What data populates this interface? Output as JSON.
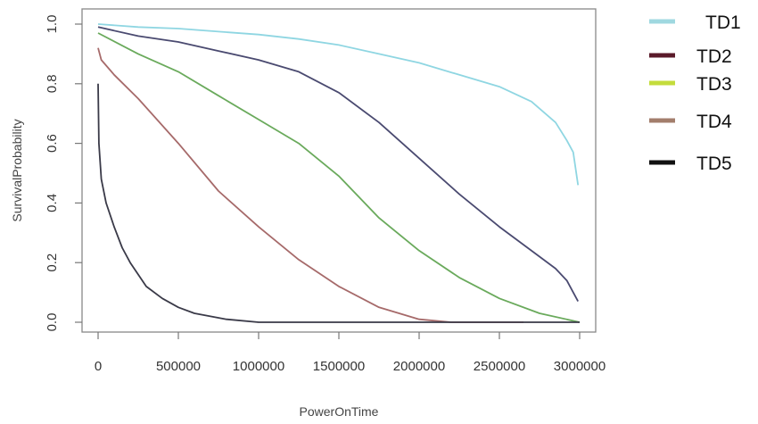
{
  "chart_data": {
    "type": "line",
    "xlabel": "PowerOnTime",
    "ylabel": "SurvivalProbability",
    "xlim": [
      0,
      3000000
    ],
    "ylim": [
      0,
      1
    ],
    "xticks": [
      0,
      500000,
      1000000,
      1500000,
      2000000,
      2500000,
      3000000
    ],
    "xtick_labels": [
      "0",
      "500000",
      "1000000",
      "1500000",
      "2000000",
      "2500000",
      "3000000"
    ],
    "yticks": [
      0,
      0.2,
      0.4,
      0.6,
      0.8,
      1.0
    ],
    "ytick_labels": [
      "0.0",
      "0.2",
      "0.4",
      "0.6",
      "0.8",
      "1.0"
    ],
    "grid": false,
    "legend_position": "right",
    "legend": [
      {
        "label": "TD1",
        "color": "#9fd8e0"
      },
      {
        "label": "TD2",
        "color": "#5a1a2a"
      },
      {
        "label": "TD3",
        "color": "#c4dc3c"
      },
      {
        "label": "TD4",
        "color": "#a37e6c"
      },
      {
        "label": "TD5",
        "color": "#111111"
      }
    ],
    "series": [
      {
        "color": "#8fd6e2",
        "x": [
          0,
          250000,
          500000,
          750000,
          1000000,
          1250000,
          1500000,
          1750000,
          2000000,
          2250000,
          2500000,
          2700000,
          2850000,
          2920000,
          2960000,
          2990000
        ],
        "y": [
          1.0,
          0.99,
          0.985,
          0.975,
          0.965,
          0.95,
          0.93,
          0.9,
          0.87,
          0.83,
          0.79,
          0.74,
          0.67,
          0.61,
          0.57,
          0.46
        ]
      },
      {
        "color": "#4a4a70",
        "x": [
          0,
          250000,
          500000,
          750000,
          1000000,
          1250000,
          1500000,
          1750000,
          2000000,
          2250000,
          2500000,
          2750000,
          2850000,
          2920000,
          2960000,
          2990000
        ],
        "y": [
          0.99,
          0.96,
          0.94,
          0.91,
          0.88,
          0.84,
          0.77,
          0.67,
          0.55,
          0.43,
          0.32,
          0.22,
          0.18,
          0.14,
          0.1,
          0.07
        ]
      },
      {
        "color": "#6aaa5c",
        "x": [
          0,
          250000,
          500000,
          750000,
          1000000,
          1250000,
          1500000,
          1750000,
          2000000,
          2250000,
          2500000,
          2750000,
          3000000
        ],
        "y": [
          0.97,
          0.9,
          0.84,
          0.76,
          0.68,
          0.6,
          0.49,
          0.35,
          0.24,
          0.15,
          0.08,
          0.03,
          0.0
        ]
      },
      {
        "color": "#a66a6a",
        "x": [
          0,
          20000,
          100000,
          250000,
          500000,
          750000,
          1000000,
          1250000,
          1500000,
          1750000,
          2000000,
          2200000,
          2400000,
          2650000
        ],
        "y": [
          0.92,
          0.88,
          0.83,
          0.75,
          0.6,
          0.44,
          0.32,
          0.21,
          0.12,
          0.05,
          0.01,
          0.0,
          0.0,
          0.0
        ]
      },
      {
        "color": "#3a3a48",
        "x": [
          0,
          5000,
          20000,
          50000,
          100000,
          150000,
          200000,
          300000,
          400000,
          500000,
          600000,
          800000,
          1000000,
          1500000,
          2000000,
          3000000
        ],
        "y": [
          0.8,
          0.6,
          0.48,
          0.4,
          0.32,
          0.25,
          0.2,
          0.12,
          0.08,
          0.05,
          0.03,
          0.01,
          0.0,
          0.0,
          0.0,
          0.0
        ]
      }
    ]
  }
}
